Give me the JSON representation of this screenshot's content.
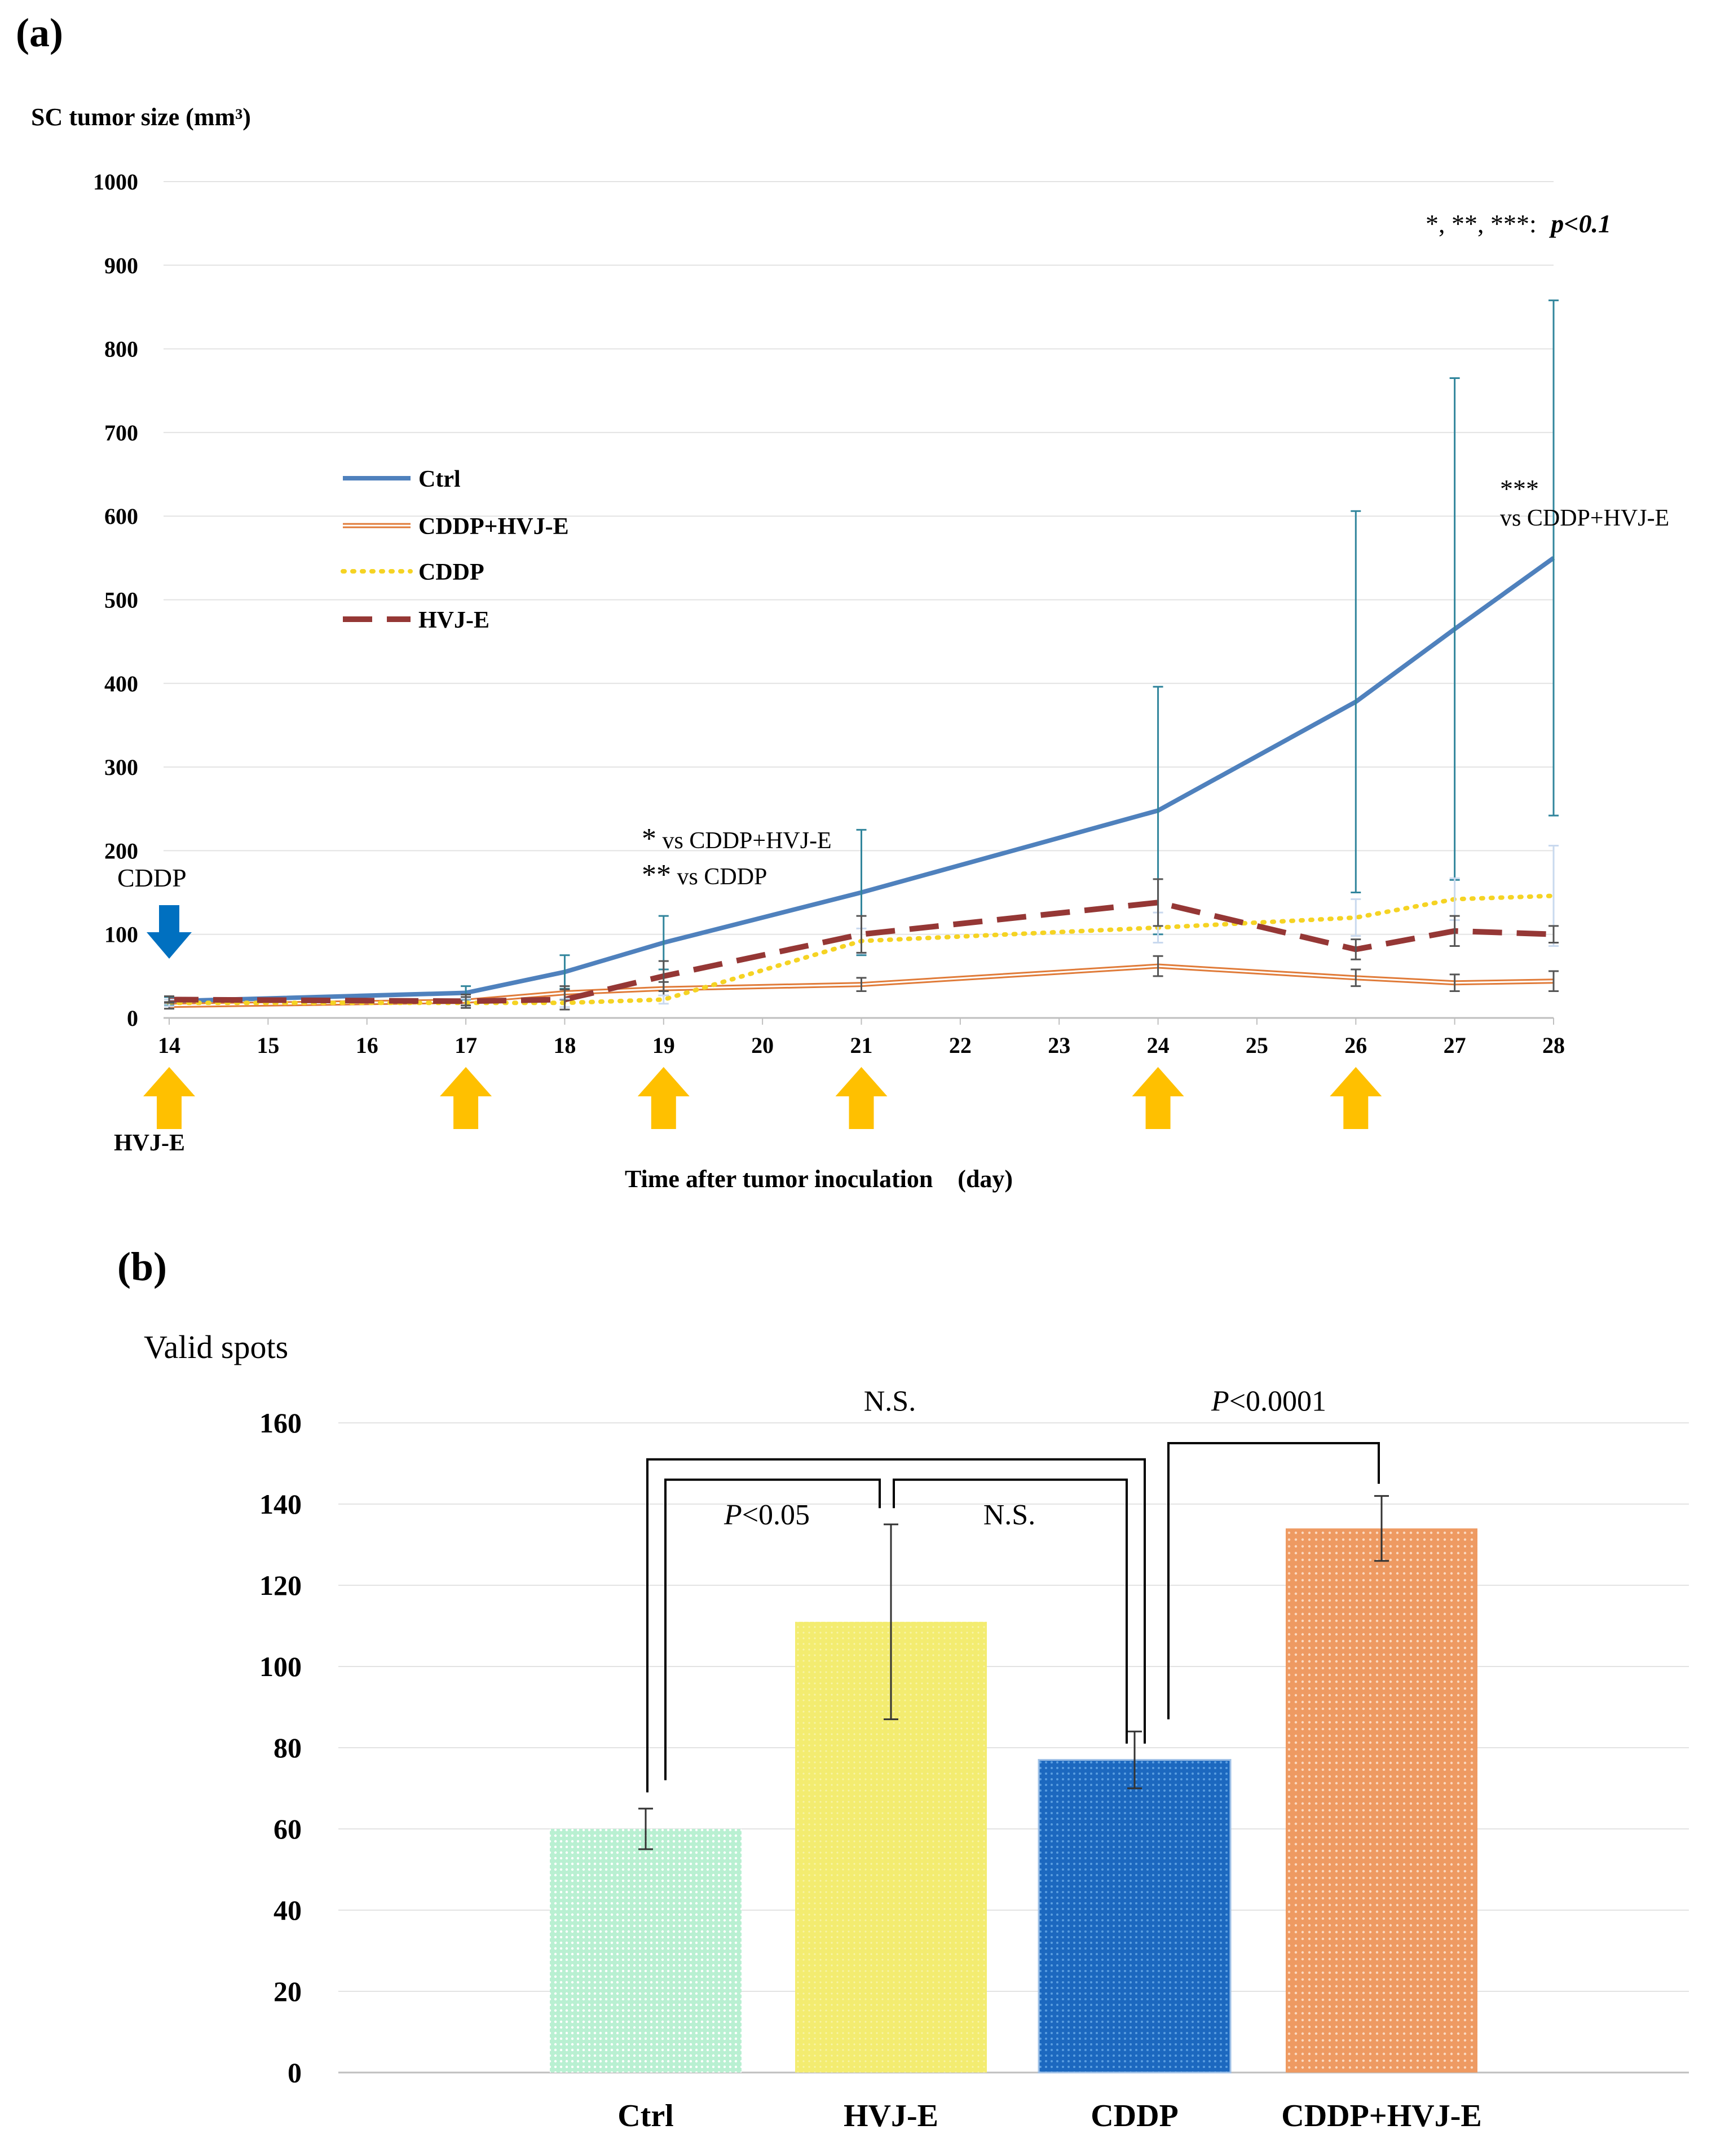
{
  "figure": {
    "label_a": "(a)",
    "label_b": "(b)"
  },
  "colors": {
    "ctrl": "#4f81bd",
    "cddp_hvje": "#e07b39",
    "cddp": "#f5d323",
    "hvje": "#953735",
    "errbar": "#31859c",
    "arrow_orange": "#ffc000",
    "arrow_blue": "#0070c0",
    "bar_ctrl": "#c6f5dc",
    "bar_hvje": "#f5ef7a",
    "bar_cddp": "#1f6fc5",
    "bar_cddp_hvje": "#f0a070"
  },
  "panel_a": {
    "significance_note": "*, **, ***:",
    "significance_p": "p<0.1",
    "annotation_day28_stars": "***",
    "annotation_day28_text": "vs CDDP+HVJ-E",
    "annotation_day19_line1_star": "*",
    "annotation_day19_line1_text": "vs CDDP+HVJ-E",
    "annotation_day19_line2_star": "**",
    "annotation_day19_line2_text": " vs CDDP",
    "cddp_arrow_label": "CDDP",
    "hvje_arrow_label": "HVJ-E",
    "hvje_injection_days": [
      14,
      17,
      19,
      21,
      24,
      26
    ],
    "cddp_injection_day": 14
  },
  "chart_data": [
    {
      "type": "line",
      "title": "",
      "ylabel": "SC tumor size (mm³)",
      "xlabel": "Time after tumor inoculation　(day)",
      "ylim": [
        0,
        1000
      ],
      "yticks": [
        0,
        100,
        200,
        300,
        400,
        500,
        600,
        700,
        800,
        900,
        1000
      ],
      "xticks": [
        14,
        15,
        16,
        17,
        18,
        19,
        20,
        21,
        22,
        23,
        24,
        25,
        26,
        27,
        28
      ],
      "grid": true,
      "legend": "center-left",
      "series": [
        {
          "name": "Ctrl",
          "key": "ctrl",
          "x": [
            14,
            17,
            18,
            19,
            21,
            24,
            26,
            27,
            28
          ],
          "values": [
            20,
            30,
            55,
            90,
            150,
            248,
            378,
            465,
            550
          ],
          "err": [
            5,
            8,
            20,
            32,
            75,
            148,
            228,
            300,
            308
          ]
        },
        {
          "name": "CDDP+HVJ-E",
          "key": "cddp_hvje",
          "x": [
            14,
            17,
            18,
            19,
            21,
            24,
            26,
            27,
            28
          ],
          "values": [
            15,
            20,
            30,
            35,
            40,
            62,
            48,
            42,
            44
          ],
          "err": [
            4,
            5,
            8,
            8,
            8,
            12,
            10,
            10,
            12
          ]
        },
        {
          "name": "CDDP",
          "key": "cddp",
          "x": [
            14,
            17,
            18,
            19,
            21,
            24,
            26,
            27,
            28
          ],
          "values": [
            18,
            18,
            18,
            22,
            92,
            108,
            120,
            142,
            146
          ],
          "err": [
            4,
            5,
            5,
            5,
            15,
            18,
            22,
            25,
            60
          ]
        },
        {
          "name": "HVJ-E",
          "key": "hvje",
          "x": [
            14,
            17,
            18,
            19,
            21,
            24,
            26,
            27,
            28
          ],
          "values": [
            22,
            20,
            22,
            50,
            100,
            138,
            82,
            104,
            100
          ],
          "err": [
            4,
            8,
            12,
            18,
            22,
            28,
            12,
            18,
            10
          ]
        }
      ]
    },
    {
      "type": "bar",
      "title": "",
      "ylabel": "Valid spots",
      "xlabel": "",
      "ylim": [
        0,
        160
      ],
      "yticks": [
        0,
        20,
        40,
        60,
        80,
        100,
        120,
        140,
        160
      ],
      "grid": true,
      "categories": [
        "Ctrl",
        "HVJ-E",
        "CDDP",
        "CDDP+HVJ-E"
      ],
      "keys": [
        "bar_ctrl",
        "bar_hvje",
        "bar_cddp",
        "bar_cddp_hvje"
      ],
      "values": [
        60,
        111,
        77,
        134
      ],
      "err": [
        5,
        24,
        7,
        8
      ],
      "brackets": [
        {
          "from": 0,
          "to": 2,
          "label": "N.S.",
          "italic_p": false
        },
        {
          "from": 0,
          "to": 1,
          "label_p": "P",
          "label": "<0.05",
          "italic_p": true
        },
        {
          "from": 1,
          "to": 2,
          "label": "N.S.",
          "italic_p": false
        },
        {
          "from": 2,
          "to": 3,
          "label_p": "P",
          "label": "<0.0001",
          "italic_p": true
        }
      ]
    }
  ]
}
